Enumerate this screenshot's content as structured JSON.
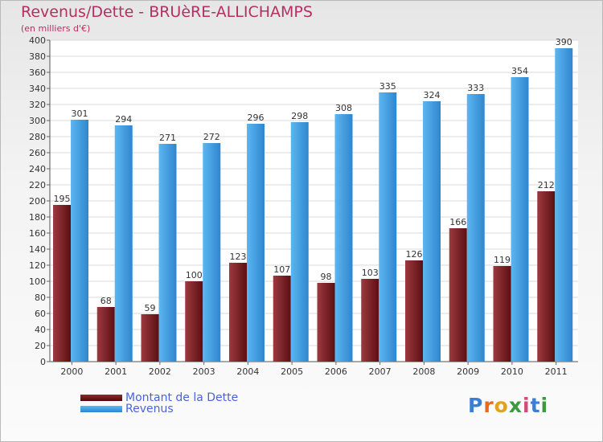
{
  "chart_data": {
    "type": "bar",
    "title": "Revenus/Dette - BRUèRE-ALLICHAMPS",
    "subtitle": "(en milliers d'€)",
    "categories": [
      "2000",
      "2001",
      "2002",
      "2003",
      "2004",
      "2005",
      "2006",
      "2007",
      "2008",
      "2009",
      "2010",
      "2011"
    ],
    "series": [
      {
        "name": "Montant de la Dette",
        "color": "#7a1a1e",
        "values": [
          195,
          68,
          59,
          100,
          123,
          107,
          98,
          103,
          126,
          166,
          119,
          212
        ]
      },
      {
        "name": "Revenus",
        "color": "#4aa3e6",
        "values": [
          301,
          294,
          271,
          272,
          296,
          298,
          308,
          335,
          324,
          333,
          354,
          390
        ]
      }
    ],
    "ylim": [
      0,
      400
    ],
    "yticks": [
      0,
      20,
      40,
      60,
      80,
      100,
      120,
      140,
      160,
      180,
      200,
      220,
      240,
      260,
      280,
      300,
      320,
      340,
      360,
      380,
      400
    ],
    "grid": true,
    "legend_position": "bottom-left"
  },
  "brand": "Proxiti"
}
